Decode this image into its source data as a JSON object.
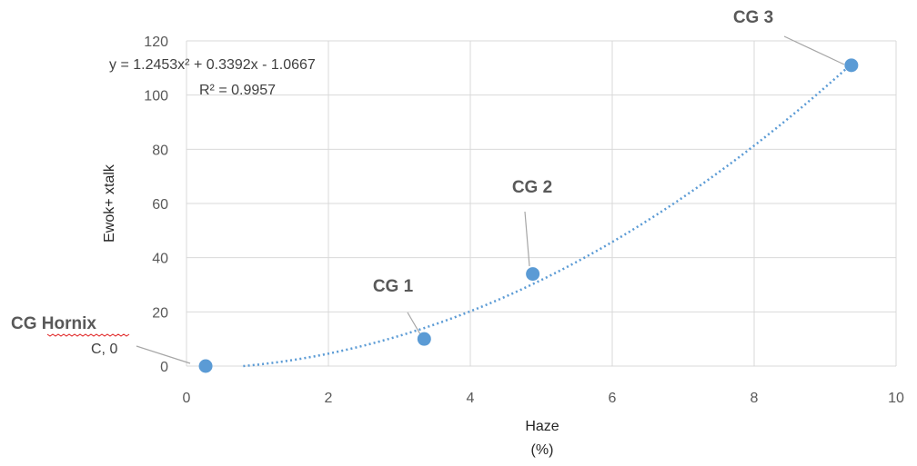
{
  "chart_data": {
    "type": "scatter",
    "xlabel": "Haze",
    "xlabel_unit": "(%)",
    "ylabel": "Ewok+ xtalk",
    "xlim": [
      0,
      10
    ],
    "ylim": [
      0,
      120
    ],
    "xticks": [
      0,
      2,
      4,
      6,
      8,
      10
    ],
    "yticks": [
      0,
      20,
      40,
      60,
      80,
      100,
      120
    ],
    "grid": true,
    "marker_color": "#5B9BD5",
    "trendline_color": "#5B9BD5",
    "trendline": {
      "type": "polynomial",
      "order": 2,
      "coefficients": [
        1.2453,
        0.3392,
        -1.0667
      ],
      "equation": "y = 1.2453x² + 0.3392x - 1.0667",
      "r_squared": "R² = 0.9957"
    },
    "points": [
      {
        "label": "CG Hornix",
        "sublabel": "C, 0",
        "x": 0.27,
        "y": 0
      },
      {
        "label": "CG 1",
        "x": 3.35,
        "y": 10
      },
      {
        "label": "CG 2",
        "x": 4.88,
        "y": 34
      },
      {
        "label": "CG 3",
        "x": 9.37,
        "y": 111
      }
    ]
  }
}
